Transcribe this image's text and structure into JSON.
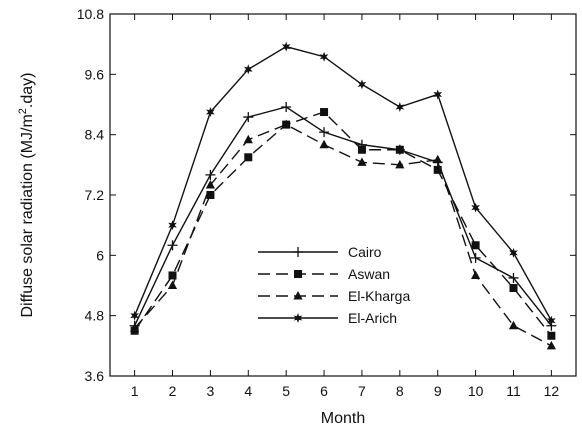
{
  "chart_data": {
    "type": "line",
    "title": "",
    "xlabel": "Month",
    "ylabel": "Diffuse solar radiation (MJ/m²·day)",
    "ylabel_parts": {
      "before": "Diffuse solar radiation (MJ/m",
      "sup": "2",
      "after": ".day)"
    },
    "x": [
      1,
      2,
      3,
      4,
      5,
      6,
      7,
      8,
      9,
      10,
      11,
      12
    ],
    "x_ticks": [
      "1",
      "2",
      "3",
      "4",
      "5",
      "6",
      "7",
      "8",
      "9",
      "10",
      "11",
      "12"
    ],
    "xlim": [
      0.35,
      12.65
    ],
    "ylim": [
      3.6,
      10.8
    ],
    "y_ticks": [
      "3.6",
      "4.8",
      "6",
      "7.2",
      "8.4",
      "9.6",
      "10.8"
    ],
    "grid": false,
    "legend_position": "lower-center",
    "series": [
      {
        "name": "Cairo",
        "marker": "plus",
        "dash": "solid",
        "values": [
          4.6,
          6.2,
          7.6,
          8.75,
          8.95,
          8.45,
          8.2,
          8.1,
          7.85,
          5.95,
          5.55,
          4.6
        ]
      },
      {
        "name": "Aswan",
        "marker": "square",
        "dash": "dashed",
        "values": [
          4.5,
          5.6,
          7.2,
          7.95,
          8.6,
          8.85,
          8.1,
          8.1,
          7.7,
          6.2,
          5.35,
          4.4
        ]
      },
      {
        "name": "El-Kharga",
        "marker": "triangle",
        "dash": "dashed",
        "values": [
          4.55,
          5.4,
          7.4,
          8.3,
          8.6,
          8.2,
          7.85,
          7.8,
          7.9,
          5.6,
          4.6,
          4.2
        ]
      },
      {
        "name": "El-Arich",
        "marker": "star",
        "dash": "solid",
        "values": [
          4.8,
          6.6,
          8.85,
          9.7,
          10.15,
          9.95,
          9.4,
          8.95,
          9.2,
          6.95,
          6.05,
          4.7
        ]
      }
    ]
  }
}
